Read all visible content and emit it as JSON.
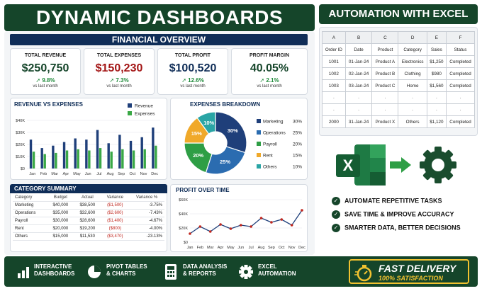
{
  "header": {
    "title": "DYNAMIC DASHBOARDS"
  },
  "financial_overview": {
    "title": "FINANCIAL OVERVIEW"
  },
  "kpis": [
    {
      "label": "TOTAL REVENUE",
      "value": "$250,750",
      "change": "9.8%",
      "sub": "vs last month",
      "color": "#15452a"
    },
    {
      "label": "TOTAL EXPENSES",
      "value": "$150,230",
      "change": "7.3%",
      "sub": "vs last month",
      "color": "#a31515"
    },
    {
      "label": "TOTAL PROFIT",
      "value": "$100,520",
      "change": "12.6%",
      "sub": "vs last month",
      "color": "#0f2d57"
    },
    {
      "label": "PROFIT MARGIN",
      "value": "40.05%",
      "change": "2.1%",
      "sub": "vs last month",
      "color": "#15452a"
    }
  ],
  "chart_data": [
    {
      "type": "bar",
      "title": "REVENUE VS EXPENSES",
      "categories": [
        "Jan",
        "Feb",
        "Mar",
        "Apr",
        "May",
        "Jun",
        "Jul",
        "Aug",
        "Sep",
        "Oct",
        "Nov",
        "Dec"
      ],
      "series": [
        {
          "name": "Revenue",
          "values": [
            24,
            17,
            19,
            22,
            25,
            24,
            32,
            21,
            28,
            23,
            26,
            34
          ],
          "color": "#1f3f7a"
        },
        {
          "name": "Expenses",
          "values": [
            14,
            12,
            13,
            15,
            16,
            15,
            17,
            14,
            16,
            15,
            16,
            19
          ],
          "color": "#3aa846"
        }
      ],
      "yticks": [
        "$40K",
        "$30K",
        "$20K",
        "$10K",
        "$0"
      ],
      "ylim": [
        0,
        40
      ],
      "legend": "top-right"
    },
    {
      "type": "pie",
      "title": "EXPENSES BREAKDOWN",
      "slices": [
        {
          "name": "Marketing",
          "value": 30,
          "label": "30%",
          "color": "#1f3f7a"
        },
        {
          "name": "Operations",
          "value": 25,
          "label": "25%",
          "color": "#2b6cb0"
        },
        {
          "name": "Payroll",
          "value": 20,
          "label": "20%",
          "color": "#2e9e45"
        },
        {
          "name": "Rent",
          "value": 15,
          "label": "15%",
          "color": "#f0a92a"
        },
        {
          "name": "Others",
          "value": 10,
          "label": "10%",
          "color": "#2aa5a5"
        }
      ],
      "legend": "right"
    },
    {
      "type": "line",
      "title": "PROFIT OVER TIME",
      "categories": [
        "Jan",
        "Feb",
        "Mar",
        "Apr",
        "May",
        "Jun",
        "Jul",
        "Aug",
        "Sep",
        "Oct",
        "Nov",
        "Dec"
      ],
      "values": [
        12,
        22,
        15,
        25,
        19,
        24,
        22,
        34,
        28,
        32,
        24,
        45
      ],
      "yticks": [
        "$60K",
        "$40K",
        "$20K",
        "$0"
      ],
      "ylim": [
        0,
        60
      ],
      "color": "#1f3f7a"
    }
  ],
  "category_summary": {
    "title": "CATEGORY SUMMARY",
    "columns": [
      "Category",
      "Budget",
      "Actual",
      "Variance",
      "Variance %"
    ],
    "rows": [
      [
        "Marketing",
        "$40,000",
        "$38,500",
        "($1,500)",
        "-3.75%"
      ],
      [
        "Operations",
        "$35,000",
        "$32,600",
        "($2,600)",
        "-7.43%"
      ],
      [
        "Payroll",
        "$30,000",
        "$28,600",
        "($1,400)",
        "-4.67%"
      ],
      [
        "Rent",
        "$20,000",
        "$19,200",
        "($800)",
        "-4.00%"
      ],
      [
        "Others",
        "$15,000",
        "$11,530",
        "($3,470)",
        "-23.13%"
      ]
    ]
  },
  "automation": {
    "title": "AUTOMATION WITH EXCEL",
    "col_letters": [
      "A",
      "B",
      "C",
      "D",
      "E",
      "F"
    ],
    "headers": [
      "Order ID",
      "Date",
      "Product",
      "Category",
      "Sales",
      "Status"
    ],
    "rows": [
      [
        "1001",
        "01-Jan-24",
        "Product A",
        "Electronics",
        "$1,250",
        "Completed"
      ],
      [
        "1002",
        "02-Jan-24",
        "Product B",
        "Clothing",
        "$980",
        "Completed"
      ],
      [
        "1003",
        "03-Jan-24",
        "Product C",
        "Home",
        "$1,560",
        "Completed"
      ],
      [
        "·",
        "·",
        "·",
        "·",
        "·",
        "·"
      ],
      [
        "·",
        "·",
        "·",
        "·",
        "·",
        "·"
      ],
      [
        "2000",
        "31-Jan-24",
        "Product X",
        "Others",
        "$1,120",
        "Completed"
      ]
    ],
    "benefits": [
      "AUTOMATE REPETITIVE TASKS",
      "SAVE TIME & IMPROVE ACCURACY",
      "SMARTER DATA, BETTER DECISIONS"
    ],
    "excel_letter": "X"
  },
  "footer": {
    "features": [
      {
        "line1": "INTERACTIVE",
        "line2": "DASHBOARDS",
        "icon": "bar-chart-icon"
      },
      {
        "line1": "PIVOT TABLES",
        "line2": "& CHARTS",
        "icon": "pie-chart-icon"
      },
      {
        "line1": "DATA ANALYSIS",
        "line2": "& REPORTS",
        "icon": "calculator-icon"
      },
      {
        "line1": "EXCEL",
        "line2": "AUTOMATION",
        "icon": "gear-icon"
      }
    ],
    "delivery": {
      "line1": "FAST DELIVERY",
      "line2": "100% SATISFACTION"
    }
  }
}
